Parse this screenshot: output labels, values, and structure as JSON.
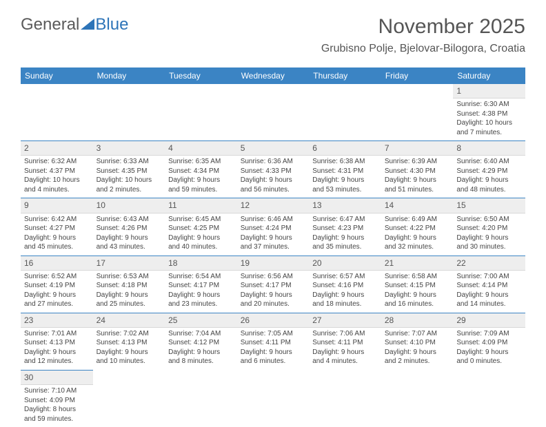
{
  "logo": {
    "text1": "General",
    "text2": "Blue",
    "color_gray": "#5a5a5a",
    "color_blue": "#2d74b8"
  },
  "title": "November 2025",
  "location": "Grubisno Polje, Bjelovar-Bilogora, Croatia",
  "day_headers": [
    "Sunday",
    "Monday",
    "Tuesday",
    "Wednesday",
    "Thursday",
    "Friday",
    "Saturday"
  ],
  "colors": {
    "header_bg": "#3b84c4",
    "header_text": "#ffffff",
    "daynum_bg": "#eeeeee",
    "border": "#3b84c4",
    "text": "#444444",
    "title": "#555555"
  },
  "weeks": [
    [
      null,
      null,
      null,
      null,
      null,
      null,
      {
        "n": "1",
        "sr": "Sunrise: 6:30 AM",
        "ss": "Sunset: 4:38 PM",
        "d1": "Daylight: 10 hours",
        "d2": "and 7 minutes."
      }
    ],
    [
      {
        "n": "2",
        "sr": "Sunrise: 6:32 AM",
        "ss": "Sunset: 4:37 PM",
        "d1": "Daylight: 10 hours",
        "d2": "and 4 minutes."
      },
      {
        "n": "3",
        "sr": "Sunrise: 6:33 AM",
        "ss": "Sunset: 4:35 PM",
        "d1": "Daylight: 10 hours",
        "d2": "and 2 minutes."
      },
      {
        "n": "4",
        "sr": "Sunrise: 6:35 AM",
        "ss": "Sunset: 4:34 PM",
        "d1": "Daylight: 9 hours",
        "d2": "and 59 minutes."
      },
      {
        "n": "5",
        "sr": "Sunrise: 6:36 AM",
        "ss": "Sunset: 4:33 PM",
        "d1": "Daylight: 9 hours",
        "d2": "and 56 minutes."
      },
      {
        "n": "6",
        "sr": "Sunrise: 6:38 AM",
        "ss": "Sunset: 4:31 PM",
        "d1": "Daylight: 9 hours",
        "d2": "and 53 minutes."
      },
      {
        "n": "7",
        "sr": "Sunrise: 6:39 AM",
        "ss": "Sunset: 4:30 PM",
        "d1": "Daylight: 9 hours",
        "d2": "and 51 minutes."
      },
      {
        "n": "8",
        "sr": "Sunrise: 6:40 AM",
        "ss": "Sunset: 4:29 PM",
        "d1": "Daylight: 9 hours",
        "d2": "and 48 minutes."
      }
    ],
    [
      {
        "n": "9",
        "sr": "Sunrise: 6:42 AM",
        "ss": "Sunset: 4:27 PM",
        "d1": "Daylight: 9 hours",
        "d2": "and 45 minutes."
      },
      {
        "n": "10",
        "sr": "Sunrise: 6:43 AM",
        "ss": "Sunset: 4:26 PM",
        "d1": "Daylight: 9 hours",
        "d2": "and 43 minutes."
      },
      {
        "n": "11",
        "sr": "Sunrise: 6:45 AM",
        "ss": "Sunset: 4:25 PM",
        "d1": "Daylight: 9 hours",
        "d2": "and 40 minutes."
      },
      {
        "n": "12",
        "sr": "Sunrise: 6:46 AM",
        "ss": "Sunset: 4:24 PM",
        "d1": "Daylight: 9 hours",
        "d2": "and 37 minutes."
      },
      {
        "n": "13",
        "sr": "Sunrise: 6:47 AM",
        "ss": "Sunset: 4:23 PM",
        "d1": "Daylight: 9 hours",
        "d2": "and 35 minutes."
      },
      {
        "n": "14",
        "sr": "Sunrise: 6:49 AM",
        "ss": "Sunset: 4:22 PM",
        "d1": "Daylight: 9 hours",
        "d2": "and 32 minutes."
      },
      {
        "n": "15",
        "sr": "Sunrise: 6:50 AM",
        "ss": "Sunset: 4:20 PM",
        "d1": "Daylight: 9 hours",
        "d2": "and 30 minutes."
      }
    ],
    [
      {
        "n": "16",
        "sr": "Sunrise: 6:52 AM",
        "ss": "Sunset: 4:19 PM",
        "d1": "Daylight: 9 hours",
        "d2": "and 27 minutes."
      },
      {
        "n": "17",
        "sr": "Sunrise: 6:53 AM",
        "ss": "Sunset: 4:18 PM",
        "d1": "Daylight: 9 hours",
        "d2": "and 25 minutes."
      },
      {
        "n": "18",
        "sr": "Sunrise: 6:54 AM",
        "ss": "Sunset: 4:17 PM",
        "d1": "Daylight: 9 hours",
        "d2": "and 23 minutes."
      },
      {
        "n": "19",
        "sr": "Sunrise: 6:56 AM",
        "ss": "Sunset: 4:17 PM",
        "d1": "Daylight: 9 hours",
        "d2": "and 20 minutes."
      },
      {
        "n": "20",
        "sr": "Sunrise: 6:57 AM",
        "ss": "Sunset: 4:16 PM",
        "d1": "Daylight: 9 hours",
        "d2": "and 18 minutes."
      },
      {
        "n": "21",
        "sr": "Sunrise: 6:58 AM",
        "ss": "Sunset: 4:15 PM",
        "d1": "Daylight: 9 hours",
        "d2": "and 16 minutes."
      },
      {
        "n": "22",
        "sr": "Sunrise: 7:00 AM",
        "ss": "Sunset: 4:14 PM",
        "d1": "Daylight: 9 hours",
        "d2": "and 14 minutes."
      }
    ],
    [
      {
        "n": "23",
        "sr": "Sunrise: 7:01 AM",
        "ss": "Sunset: 4:13 PM",
        "d1": "Daylight: 9 hours",
        "d2": "and 12 minutes."
      },
      {
        "n": "24",
        "sr": "Sunrise: 7:02 AM",
        "ss": "Sunset: 4:13 PM",
        "d1": "Daylight: 9 hours",
        "d2": "and 10 minutes."
      },
      {
        "n": "25",
        "sr": "Sunrise: 7:04 AM",
        "ss": "Sunset: 4:12 PM",
        "d1": "Daylight: 9 hours",
        "d2": "and 8 minutes."
      },
      {
        "n": "26",
        "sr": "Sunrise: 7:05 AM",
        "ss": "Sunset: 4:11 PM",
        "d1": "Daylight: 9 hours",
        "d2": "and 6 minutes."
      },
      {
        "n": "27",
        "sr": "Sunrise: 7:06 AM",
        "ss": "Sunset: 4:11 PM",
        "d1": "Daylight: 9 hours",
        "d2": "and 4 minutes."
      },
      {
        "n": "28",
        "sr": "Sunrise: 7:07 AM",
        "ss": "Sunset: 4:10 PM",
        "d1": "Daylight: 9 hours",
        "d2": "and 2 minutes."
      },
      {
        "n": "29",
        "sr": "Sunrise: 7:09 AM",
        "ss": "Sunset: 4:09 PM",
        "d1": "Daylight: 9 hours",
        "d2": "and 0 minutes."
      }
    ],
    [
      {
        "n": "30",
        "sr": "Sunrise: 7:10 AM",
        "ss": "Sunset: 4:09 PM",
        "d1": "Daylight: 8 hours",
        "d2": "and 59 minutes."
      },
      null,
      null,
      null,
      null,
      null,
      null
    ]
  ]
}
